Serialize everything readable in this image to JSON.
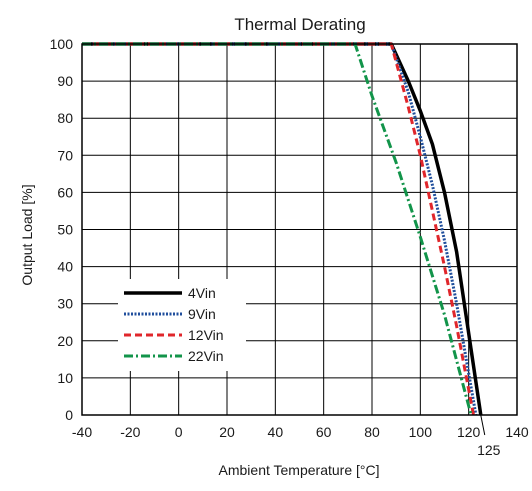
{
  "chart_data": {
    "type": "line",
    "title": "Thermal Derating",
    "xlabel": "Ambient Temperature [°C]",
    "ylabel": "Output Load [%]",
    "xlim": [
      -40,
      140
    ],
    "ylim": [
      0,
      100
    ],
    "xticks": [
      -40,
      -20,
      0,
      20,
      40,
      60,
      80,
      100,
      120,
      140
    ],
    "yticks": [
      0,
      10,
      20,
      30,
      40,
      50,
      60,
      70,
      80,
      90,
      100
    ],
    "annotation": {
      "label": "125",
      "x": 125
    },
    "grid": true,
    "legend_position": "lower-left",
    "series": [
      {
        "name": "4Vin",
        "style": "solid",
        "color": "#000000",
        "points": [
          [
            -40,
            100
          ],
          [
            88,
            100
          ],
          [
            95,
            90
          ],
          [
            100,
            82
          ],
          [
            105,
            73
          ],
          [
            110,
            60
          ],
          [
            115,
            44
          ],
          [
            120,
            22
          ],
          [
            125,
            0
          ]
        ]
      },
      {
        "name": "9Vin",
        "style": "dotted",
        "color": "#1f4e9c",
        "points": [
          [
            -40,
            100
          ],
          [
            88,
            100
          ],
          [
            95,
            87
          ],
          [
            100,
            75
          ],
          [
            105,
            62
          ],
          [
            110,
            47
          ],
          [
            115,
            30
          ],
          [
            123,
            0
          ]
        ]
      },
      {
        "name": "12Vin",
        "style": "dashed",
        "color": "#e0262b",
        "points": [
          [
            -40,
            100
          ],
          [
            88,
            100
          ],
          [
            95,
            83
          ],
          [
            100,
            70
          ],
          [
            105,
            55
          ],
          [
            110,
            40
          ],
          [
            115,
            24
          ],
          [
            122,
            0
          ]
        ]
      },
      {
        "name": "22Vin",
        "style": "dashdot",
        "color": "#12944a",
        "points": [
          [
            -40,
            100
          ],
          [
            73,
            100
          ],
          [
            80,
            86
          ],
          [
            90,
            68
          ],
          [
            100,
            48
          ],
          [
            110,
            27
          ],
          [
            121,
            0
          ]
        ]
      }
    ]
  }
}
